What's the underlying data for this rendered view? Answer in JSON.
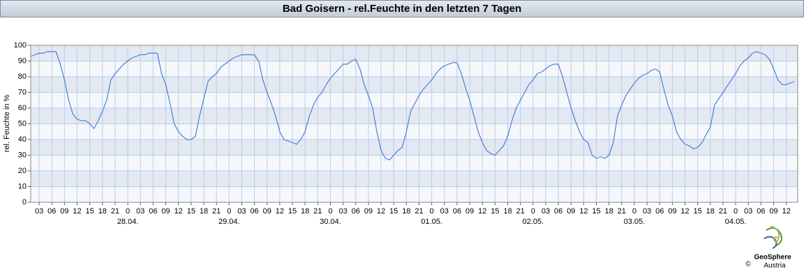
{
  "chart_data": {
    "type": "line",
    "title": "Bad Goisern - rel.Feuchte in den letzten 7 Tagen",
    "ylabel": "rel. Feuchte in %",
    "color": "#4a7fd6",
    "grid": true,
    "ylim": [
      0,
      100
    ],
    "yticks": [
      0,
      10,
      20,
      30,
      40,
      50,
      60,
      70,
      80,
      90,
      100
    ],
    "xlim": [
      1,
      182.7
    ],
    "xticks": [
      {
        "value": 3,
        "label": "03"
      },
      {
        "value": 6,
        "label": "06"
      },
      {
        "value": 9,
        "label": "09"
      },
      {
        "value": 12,
        "label": "12"
      },
      {
        "value": 15,
        "label": "15"
      },
      {
        "value": 18,
        "label": "18"
      },
      {
        "value": 21,
        "label": "21"
      },
      {
        "value": 24,
        "label": "0"
      },
      {
        "value": 27,
        "label": "03"
      },
      {
        "value": 30,
        "label": "06"
      },
      {
        "value": 33,
        "label": "09"
      },
      {
        "value": 36,
        "label": "12"
      },
      {
        "value": 39,
        "label": "15"
      },
      {
        "value": 42,
        "label": "18"
      },
      {
        "value": 45,
        "label": "21"
      },
      {
        "value": 48,
        "label": "0"
      },
      {
        "value": 51,
        "label": "03"
      },
      {
        "value": 54,
        "label": "06"
      },
      {
        "value": 57,
        "label": "09"
      },
      {
        "value": 60,
        "label": "12"
      },
      {
        "value": 63,
        "label": "15"
      },
      {
        "value": 66,
        "label": "18"
      },
      {
        "value": 69,
        "label": "21"
      },
      {
        "value": 72,
        "label": "0"
      },
      {
        "value": 75,
        "label": "03"
      },
      {
        "value": 78,
        "label": "06"
      },
      {
        "value": 81,
        "label": "09"
      },
      {
        "value": 84,
        "label": "12"
      },
      {
        "value": 87,
        "label": "15"
      },
      {
        "value": 90,
        "label": "18"
      },
      {
        "value": 93,
        "label": "21"
      },
      {
        "value": 96,
        "label": "0"
      },
      {
        "value": 99,
        "label": "03"
      },
      {
        "value": 102,
        "label": "06"
      },
      {
        "value": 105,
        "label": "09"
      },
      {
        "value": 108,
        "label": "12"
      },
      {
        "value": 111,
        "label": "15"
      },
      {
        "value": 114,
        "label": "18"
      },
      {
        "value": 117,
        "label": "21"
      },
      {
        "value": 120,
        "label": "0"
      },
      {
        "value": 123,
        "label": "03"
      },
      {
        "value": 126,
        "label": "06"
      },
      {
        "value": 129,
        "label": "09"
      },
      {
        "value": 132,
        "label": "12"
      },
      {
        "value": 135,
        "label": "15"
      },
      {
        "value": 138,
        "label": "18"
      },
      {
        "value": 141,
        "label": "21"
      },
      {
        "value": 144,
        "label": "0"
      },
      {
        "value": 147,
        "label": "03"
      },
      {
        "value": 150,
        "label": "06"
      },
      {
        "value": 153,
        "label": "09"
      },
      {
        "value": 156,
        "label": "12"
      },
      {
        "value": 159,
        "label": "15"
      },
      {
        "value": 162,
        "label": "18"
      },
      {
        "value": 165,
        "label": "21"
      },
      {
        "value": 168,
        "label": "0"
      },
      {
        "value": 171,
        "label": "03"
      },
      {
        "value": 174,
        "label": "06"
      },
      {
        "value": 177,
        "label": "09"
      },
      {
        "value": 180,
        "label": "12"
      }
    ],
    "xtick_dates": [
      {
        "value": 24,
        "label": "28.04."
      },
      {
        "value": 48,
        "label": "29.04."
      },
      {
        "value": 72,
        "label": "30.04."
      },
      {
        "value": 96,
        "label": "01.05."
      },
      {
        "value": 120,
        "label": "02.05."
      },
      {
        "value": 144,
        "label": "03.05."
      },
      {
        "value": 168,
        "label": "04.05."
      }
    ],
    "x": [
      1,
      2,
      3,
      4,
      5,
      6,
      7,
      8,
      9,
      10,
      11,
      12,
      13,
      14,
      15,
      16,
      17,
      18,
      19,
      20,
      21,
      22,
      23,
      24,
      25,
      26,
      27,
      28,
      29,
      30,
      31,
      32,
      33,
      34,
      35,
      36,
      37,
      38,
      39,
      40,
      41,
      42,
      43,
      44,
      45,
      46,
      47,
      48,
      49,
      50,
      51,
      52,
      53,
      54,
      55,
      56,
      57,
      58,
      59,
      60,
      61,
      62,
      63,
      64,
      65,
      66,
      67,
      68,
      69,
      70,
      71,
      72,
      73,
      74,
      75,
      76,
      77,
      78,
      79,
      80,
      81,
      82,
      83,
      84,
      85,
      86,
      87,
      88,
      89,
      90,
      91,
      92,
      93,
      94,
      95,
      96,
      97,
      98,
      99,
      100,
      101,
      102,
      103,
      104,
      105,
      106,
      107,
      108,
      109,
      110,
      111,
      112,
      113,
      114,
      115,
      116,
      117,
      118,
      119,
      120,
      121,
      122,
      123,
      124,
      125,
      126,
      127,
      128,
      129,
      130,
      131,
      132,
      133,
      134,
      135,
      136,
      137,
      138,
      139,
      140,
      141,
      142,
      143,
      144,
      145,
      146,
      147,
      148,
      149,
      150,
      151,
      152,
      153,
      154,
      155,
      156,
      157,
      158,
      159,
      160,
      161,
      162,
      163,
      164,
      165,
      166,
      167,
      168,
      169,
      170,
      171,
      172,
      173,
      174,
      175,
      176,
      177,
      178,
      179,
      180,
      181,
      182
    ],
    "values": [
      93,
      94,
      95,
      95,
      96,
      96,
      96,
      88,
      78,
      65,
      56,
      53,
      52,
      52,
      50,
      47,
      52,
      58,
      65,
      78,
      82,
      85,
      88,
      90,
      92,
      93,
      94,
      94,
      95,
      95,
      95,
      82,
      75,
      63,
      50,
      45,
      42,
      40,
      40,
      42,
      55,
      66,
      77,
      80,
      82,
      86,
      88,
      90,
      92,
      93,
      94,
      94,
      94,
      94,
      90,
      78,
      70,
      63,
      55,
      45,
      40,
      39,
      38,
      37,
      40,
      45,
      55,
      62,
      67,
      70,
      75,
      79,
      82,
      85,
      88,
      88,
      90,
      91,
      85,
      75,
      68,
      60,
      45,
      33,
      28,
      27,
      30,
      33,
      35,
      45,
      58,
      63,
      68,
      72,
      75,
      78,
      82,
      85,
      87,
      88,
      89,
      89,
      82,
      73,
      65,
      55,
      45,
      38,
      33,
      31,
      30,
      33,
      36,
      42,
      52,
      60,
      65,
      70,
      75,
      78,
      82,
      83,
      85,
      87,
      88,
      88,
      80,
      70,
      60,
      52,
      45,
      40,
      38,
      30,
      28,
      29,
      28,
      30,
      38,
      55,
      62,
      68,
      72,
      76,
      79,
      81,
      82,
      84,
      85,
      83,
      72,
      62,
      55,
      45,
      40,
      37,
      36,
      34,
      35,
      38,
      43,
      48,
      62,
      66,
      70,
      74,
      78,
      82,
      87,
      90,
      92,
      95,
      96,
      95,
      94,
      91,
      85,
      78,
      75,
      75,
      76,
      77
    ]
  },
  "logo": {
    "name": "GeoSphere",
    "sub": "Austria",
    "copyright": "©"
  }
}
